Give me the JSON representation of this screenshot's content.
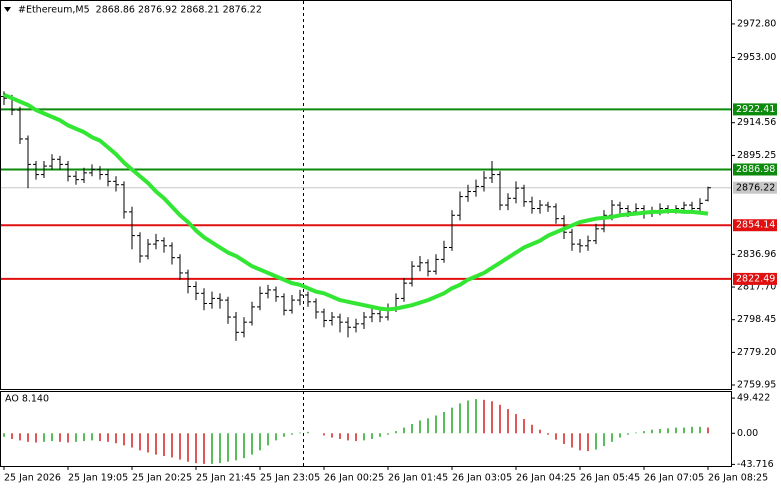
{
  "chart_data": [
    {
      "type": "ohlc",
      "title": "#Ethereum,M5  2868.86 2876.92 2868.21 2876.22",
      "categories": [
        "25 Jan 2026",
        null,
        null,
        null,
        null,
        null,
        null,
        null,
        "25 Jan 19:05",
        null,
        null,
        null,
        null,
        null,
        null,
        null,
        "25 Jan 20:25",
        null,
        null,
        null,
        null,
        null,
        null,
        null,
        "25 Jan 21:45",
        null,
        null,
        null,
        null,
        null,
        null,
        null,
        "25 Jan 23:05",
        null,
        null,
        null,
        null,
        null,
        null,
        null,
        "26 Jan 00:25",
        null,
        null,
        null,
        null,
        null,
        null,
        null,
        "26 Jan 01:45",
        null,
        null,
        null,
        null,
        null,
        null,
        null,
        "26 Jan 03:05",
        null,
        null,
        null,
        null,
        null,
        null,
        null,
        "26 Jan 04:25",
        null,
        null,
        null,
        null,
        null,
        null,
        null,
        "26 Jan 05:45",
        null,
        null,
        null,
        null,
        null,
        null,
        null,
        "26 Jan 07:05",
        null,
        null,
        null,
        null,
        null,
        null,
        null,
        "26 Jan 08:25"
      ],
      "open": [
        2930,
        2929,
        2922,
        2905,
        2890,
        2884,
        2889,
        2893,
        2890,
        2883,
        2881,
        2885,
        2887,
        2884,
        2880,
        2878,
        2862,
        2848,
        2836,
        2843,
        2845,
        2842,
        2835,
        2826,
        2818,
        2814,
        2808,
        2811,
        2810,
        2800,
        2791,
        2797,
        2806,
        2814,
        2816,
        2812,
        2804,
        2810,
        2813,
        2809,
        2803,
        2798,
        2800,
        2797,
        2794,
        2796,
        2800,
        2802,
        2800,
        2805,
        2811,
        2820,
        2830,
        2832,
        2827,
        2834,
        2841,
        2860,
        2871,
        2874,
        2877,
        2882,
        2884,
        2866,
        2870,
        2876,
        2868,
        2864,
        2866,
        2865,
        2858,
        2850,
        2843,
        2842,
        2845,
        2852,
        2860,
        2866,
        2864,
        2862,
        2864,
        2861,
        2862,
        2864,
        2863,
        2864,
        2866,
        2864,
        2868.86
      ],
      "high": [
        2933,
        2931,
        2924,
        2907,
        2892,
        2892,
        2896,
        2895,
        2892,
        2886,
        2888,
        2890,
        2889,
        2887,
        2883,
        2880,
        2865,
        2850,
        2846,
        2849,
        2847,
        2844,
        2837,
        2828,
        2821,
        2817,
        2815,
        2814,
        2812,
        2803,
        2800,
        2809,
        2818,
        2819,
        2818,
        2814,
        2813,
        2816,
        2815,
        2811,
        2805,
        2803,
        2802,
        2800,
        2799,
        2803,
        2805,
        2804,
        2808,
        2814,
        2823,
        2833,
        2836,
        2834,
        2837,
        2845,
        2863,
        2874,
        2878,
        2881,
        2886,
        2892,
        2886,
        2873,
        2880,
        2878,
        2871,
        2869,
        2868,
        2867,
        2860,
        2852,
        2846,
        2848,
        2855,
        2863,
        2869,
        2868,
        2866,
        2867,
        2866,
        2865,
        2867,
        2866,
        2866,
        2868,
        2868,
        2870,
        2876.92
      ],
      "low": [
        2925,
        2919,
        2902,
        2876,
        2881,
        2882,
        2887,
        2887,
        2880,
        2878,
        2879,
        2883,
        2881,
        2877,
        2874,
        2858,
        2840,
        2832,
        2834,
        2840,
        2838,
        2831,
        2822,
        2814,
        2810,
        2804,
        2805,
        2805,
        2796,
        2786,
        2788,
        2795,
        2804,
        2811,
        2809,
        2801,
        2802,
        2807,
        2806,
        2799,
        2794,
        2795,
        2791,
        2788,
        2791,
        2793,
        2797,
        2797,
        2798,
        2803,
        2809,
        2818,
        2827,
        2824,
        2825,
        2832,
        2839,
        2857,
        2868,
        2871,
        2874,
        2879,
        2863,
        2863,
        2867,
        2865,
        2861,
        2861,
        2862,
        2855,
        2846,
        2839,
        2838,
        2839,
        2843,
        2850,
        2857,
        2861,
        2859,
        2860,
        2858,
        2859,
        2860,
        2861,
        2861,
        2862,
        2862,
        2862,
        2868.21
      ],
      "close": [
        2929,
        2922,
        2905,
        2890,
        2884,
        2889,
        2893,
        2890,
        2883,
        2881,
        2885,
        2887,
        2884,
        2880,
        2878,
        2862,
        2848,
        2836,
        2843,
        2845,
        2842,
        2835,
        2826,
        2818,
        2814,
        2808,
        2811,
        2810,
        2800,
        2791,
        2797,
        2806,
        2814,
        2816,
        2812,
        2804,
        2810,
        2813,
        2809,
        2803,
        2798,
        2800,
        2797,
        2794,
        2796,
        2800,
        2802,
        2800,
        2805,
        2811,
        2820,
        2830,
        2832,
        2827,
        2834,
        2841,
        2860,
        2871,
        2874,
        2877,
        2882,
        2884,
        2866,
        2870,
        2876,
        2868,
        2864,
        2866,
        2865,
        2858,
        2850,
        2843,
        2842,
        2845,
        2852,
        2860,
        2866,
        2864,
        2862,
        2864,
        2861,
        2862,
        2864,
        2863,
        2864,
        2866,
        2864,
        2867,
        2876.22
      ],
      "color": "#000000",
      "ma": {
        "color": "#33e633",
        "values": [
          2931,
          2929,
          2927,
          2925,
          2922,
          2920,
          2918,
          2916,
          2913,
          2911,
          2909,
          2906,
          2904,
          2900,
          2896,
          2891,
          2887,
          2883,
          2879,
          2874,
          2870,
          2865,
          2860,
          2856,
          2851,
          2847,
          2844,
          2841,
          2838,
          2836,
          2833,
          2830,
          2828,
          2826,
          2824,
          2822,
          2820,
          2819,
          2817,
          2815,
          2814,
          2812,
          2810,
          2809,
          2808,
          2807,
          2806,
          2805,
          2804.5,
          2805,
          2806,
          2807,
          2808.5,
          2810,
          2812,
          2814,
          2817,
          2819,
          2822,
          2824,
          2826,
          2829,
          2832,
          2835,
          2838,
          2841,
          2843,
          2845,
          2848,
          2850,
          2852,
          2854,
          2856,
          2857,
          2858,
          2858.5,
          2859,
          2860,
          2860.5,
          2861,
          2861.5,
          2862,
          2862,
          2862.5,
          2862.5,
          2862,
          2862,
          2861.5,
          2861
        ]
      },
      "levels": [
        {
          "value": 2922.41,
          "color": "#0b8a0b"
        },
        {
          "value": 2886.98,
          "color": "#0b8a0b"
        },
        {
          "value": 2854.14,
          "color": "#e01010"
        },
        {
          "value": 2822.49,
          "color": "#e01010"
        }
      ],
      "current_price": 2876.22,
      "current_color": "#c8c8c8",
      "ylim": [
        2757.6,
        2986.3
      ],
      "yticks": [
        {
          "value": 2972.8,
          "label": "2972.80"
        },
        {
          "value": 2953,
          "label": "2953.00"
        },
        2914.56,
        2895.25,
        2836.96,
        {
          "value": 2817.7,
          "label": "2817.70"
        },
        2798.45,
        {
          "value": 2779.2,
          "label": "2779.20"
        },
        2759.95
      ]
    },
    {
      "type": "ao",
      "title": "AO 8.140",
      "values": [
        -5,
        -8,
        -10,
        -12,
        -13,
        -12,
        -11,
        -12,
        -13,
        -12,
        -11,
        -10,
        -11,
        -12,
        -14,
        -17,
        -20,
        -24,
        -27,
        -30,
        -32,
        -34,
        -37,
        -40,
        -42,
        -43,
        -43,
        -42,
        -40,
        -38,
        -35,
        -30,
        -24,
        -17,
        -10,
        -5,
        -2,
        1,
        2,
        0,
        -3,
        -6,
        -8,
        -10,
        -11,
        -10,
        -8,
        -5,
        -2,
        3,
        8,
        13,
        18,
        21,
        25,
        30,
        36,
        42,
        46,
        48,
        47,
        45,
        40,
        34,
        27,
        20,
        12,
        5,
        -2,
        -9,
        -15,
        -20,
        -24,
        -25,
        -23,
        -18,
        -12,
        -6,
        -2,
        1,
        3,
        5,
        6,
        7,
        8,
        8,
        9,
        9,
        8.14
      ],
      "up_color": "#22a722",
      "down_color": "#d42020",
      "ylim": [
        -46,
        58
      ],
      "yticks": [
        49.422,
        {
          "value": 0,
          "label": "0.00"
        },
        -43.716
      ]
    }
  ]
}
